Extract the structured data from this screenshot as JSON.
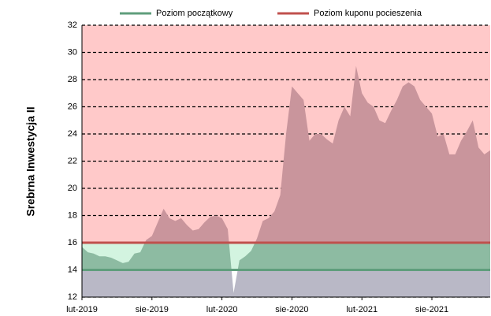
{
  "chart_data": {
    "type": "area",
    "y_label": "Srebrna Inwestycja II",
    "categories": [
      "lut-2019",
      null,
      null,
      null,
      null,
      null,
      null,
      null,
      null,
      null,
      null,
      null,
      "sie-2019",
      null,
      null,
      null,
      null,
      null,
      null,
      null,
      null,
      null,
      null,
      null,
      "lut-2020",
      null,
      null,
      null,
      null,
      null,
      null,
      null,
      null,
      null,
      null,
      null,
      "sie-2020",
      null,
      null,
      null,
      null,
      null,
      null,
      null,
      null,
      null,
      null,
      null,
      "lut-2021",
      null,
      null,
      null,
      null,
      null,
      null,
      null,
      null,
      null,
      null,
      null,
      "sie-2021",
      null,
      null,
      null,
      null,
      null,
      null,
      null,
      null,
      null,
      null
    ],
    "series": [
      {
        "color": "#c9959c",
        "values": [
          15.7,
          15.3,
          15.2,
          15.0,
          15.0,
          14.9,
          14.7,
          14.5,
          14.6,
          15.2,
          15.3,
          16.2,
          16.5,
          17.5,
          18.5,
          17.8,
          17.6,
          17.8,
          17.3,
          16.9,
          17.0,
          17.5,
          17.9,
          18.0,
          17.8,
          17.0,
          12.3,
          14.7,
          15.0,
          15.4,
          16.3,
          17.6,
          17.8,
          18.3,
          19.5,
          24.0,
          27.5,
          27.0,
          26.5,
          23.5,
          24.0,
          24.0,
          23.6,
          23.3,
          25.0,
          26.0,
          25.3,
          29.0,
          27.0,
          26.3,
          26.0,
          25.0,
          24.8,
          25.7,
          26.5,
          27.5,
          27.8,
          27.5,
          26.5,
          26.0,
          25.5,
          23.8,
          24.0,
          22.5,
          22.5,
          23.5,
          24.2,
          25.0,
          23.0,
          22.5,
          22.8
        ]
      }
    ],
    "levels": [
      {
        "name": "Poziom początkowy",
        "color": "#5f9e7c",
        "value": 14
      },
      {
        "name": "Poziom kuponu pocieszenia",
        "color": "#c0504d",
        "value": 16
      }
    ],
    "ylim": [
      12,
      32
    ],
    "yticks": [
      12,
      14,
      16,
      18,
      20,
      22,
      24,
      26,
      28,
      30,
      32
    ],
    "grid": true
  }
}
